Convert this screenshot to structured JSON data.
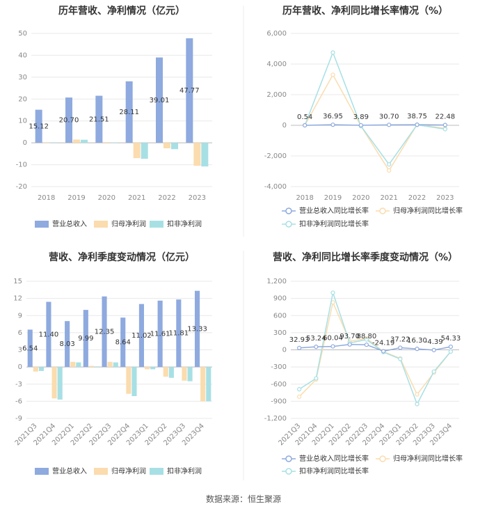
{
  "colors": {
    "revenue": "#8eaadf",
    "parent_net": "#fbdcae",
    "deducted_net": "#a7e0e4",
    "grid": "#e8e8e8",
    "axis_text": "#888888",
    "title": "#333333",
    "label": "#333333"
  },
  "footer": {
    "source": "数据来源：恒生聚源"
  },
  "chart_data": [
    {
      "type": "bar",
      "title": "历年营收、净利情况（亿元）",
      "categories": [
        "2018",
        "2019",
        "2020",
        "2021",
        "2022",
        "2023"
      ],
      "ylim": [
        -20,
        50
      ],
      "yticks": [
        -20,
        -10,
        0,
        10,
        20,
        30,
        40,
        50
      ],
      "series": [
        {
          "name": "营业总收入",
          "color_key": "revenue",
          "values": [
            15.12,
            20.7,
            21.51,
            28.11,
            39.01,
            47.77
          ],
          "labels": [
            "15.12",
            "20.70",
            "21.51",
            "28.11",
            "39.01",
            "47.77"
          ]
        },
        {
          "name": "归母净利润",
          "color_key": "parent_net",
          "values": [
            0,
            1.5,
            0.3,
            -7.0,
            -2.5,
            -10.5
          ]
        },
        {
          "name": "扣非净利润",
          "color_key": "deducted_net",
          "values": [
            0,
            1.4,
            0.2,
            -7.3,
            -2.9,
            -10.8
          ]
        }
      ]
    },
    {
      "type": "line",
      "title": "历年营收、净利同比增长率情况（%）",
      "categories": [
        "2018",
        "2019",
        "2020",
        "2021",
        "2022",
        "2023"
      ],
      "ylim": [
        -4000,
        6000
      ],
      "yticks": [
        -4000,
        -2000,
        0,
        2000,
        4000,
        6000
      ],
      "ytick_labels": [
        "-4,000",
        "-2,000",
        "0",
        "2,000",
        "4,000",
        "6,000"
      ],
      "series": [
        {
          "name": "营业总收入同比增长率",
          "color_key": "revenue",
          "values": [
            0.54,
            36.95,
            3.89,
            30.7,
            38.75,
            22.48
          ],
          "labels": [
            "0.54",
            "36.95",
            "3.89",
            "30.70",
            "38.75",
            "22.48"
          ]
        },
        {
          "name": "归母净利润同比增长率",
          "color_key": "parent_net",
          "values": [
            0,
            3300,
            -50,
            -2950,
            50,
            -200
          ]
        },
        {
          "name": "扣非净利润同比增长率",
          "color_key": "deducted_net",
          "values": [
            0,
            4750,
            -50,
            -2550,
            30,
            -250
          ]
        }
      ]
    },
    {
      "type": "bar",
      "title": "营收、净利季度变动情况（亿元）",
      "categories": [
        "2021Q3",
        "2021Q4",
        "2022Q1",
        "2022Q2",
        "2022Q3",
        "2022Q4",
        "2023Q1",
        "2023Q2",
        "2023Q3",
        "2023Q4"
      ],
      "ylim": [
        -9,
        15
      ],
      "yticks": [
        -9,
        -6,
        -3,
        0,
        3,
        6,
        9,
        12,
        15
      ],
      "series": [
        {
          "name": "营业总收入",
          "color_key": "revenue",
          "values": [
            6.54,
            11.4,
            8.03,
            9.99,
            12.35,
            8.64,
            11.02,
            11.61,
            11.81,
            13.33
          ],
          "labels": [
            "6.54",
            "11.40",
            "8.03",
            "9.99",
            "12.35",
            "8.64",
            "11.02",
            "11.61",
            "11.81",
            "13.33"
          ]
        },
        {
          "name": "归母净利润",
          "color_key": "parent_net",
          "values": [
            -0.8,
            -5.5,
            0.9,
            0.2,
            0.9,
            -4.7,
            -0.4,
            -1.7,
            -2.4,
            -6.0
          ]
        },
        {
          "name": "扣非净利润",
          "color_key": "deducted_net",
          "values": [
            -0.7,
            -5.7,
            0.8,
            0.1,
            0.8,
            -5.1,
            -0.4,
            -1.9,
            -2.5,
            -6.0
          ]
        }
      ]
    },
    {
      "type": "line",
      "title": "营收、净利同比增长率季度变动情况（%）",
      "categories": [
        "2021Q3",
        "2021Q4",
        "2022Q1",
        "2022Q2",
        "2022Q3",
        "2022Q4",
        "2023Q1",
        "2023Q2",
        "2023Q3",
        "2023Q4"
      ],
      "ylim": [
        -1200,
        1200
      ],
      "yticks": [
        -1200,
        -900,
        -600,
        -300,
        0,
        300,
        600,
        900,
        1200
      ],
      "ytick_labels": [
        "-1,200",
        "-900",
        "-600",
        "-300",
        "0",
        "300",
        "600",
        "900",
        "1,200"
      ],
      "series": [
        {
          "name": "营业总收入同比增长率",
          "color_key": "revenue",
          "values": [
            32.93,
            53.24,
            60.04,
            93.7,
            88.8,
            -24.19,
            37.22,
            16.3,
            -4.39,
            54.33
          ],
          "labels": [
            "32.93",
            "53.24",
            "60.04",
            "93.70",
            "88.80",
            "-24.19",
            "37.22",
            "16.30",
            "-4.39",
            "54.33"
          ]
        },
        {
          "name": "归母净利润同比增长率",
          "color_key": "parent_net",
          "values": [
            -820,
            -520,
            830,
            150,
            200,
            -30,
            -150,
            -780,
            -400,
            -30
          ]
        },
        {
          "name": "扣非净利润同比增长率",
          "color_key": "deducted_net",
          "values": [
            -690,
            -500,
            1000,
            120,
            180,
            -40,
            -160,
            -950,
            -380,
            -30
          ]
        }
      ]
    }
  ]
}
